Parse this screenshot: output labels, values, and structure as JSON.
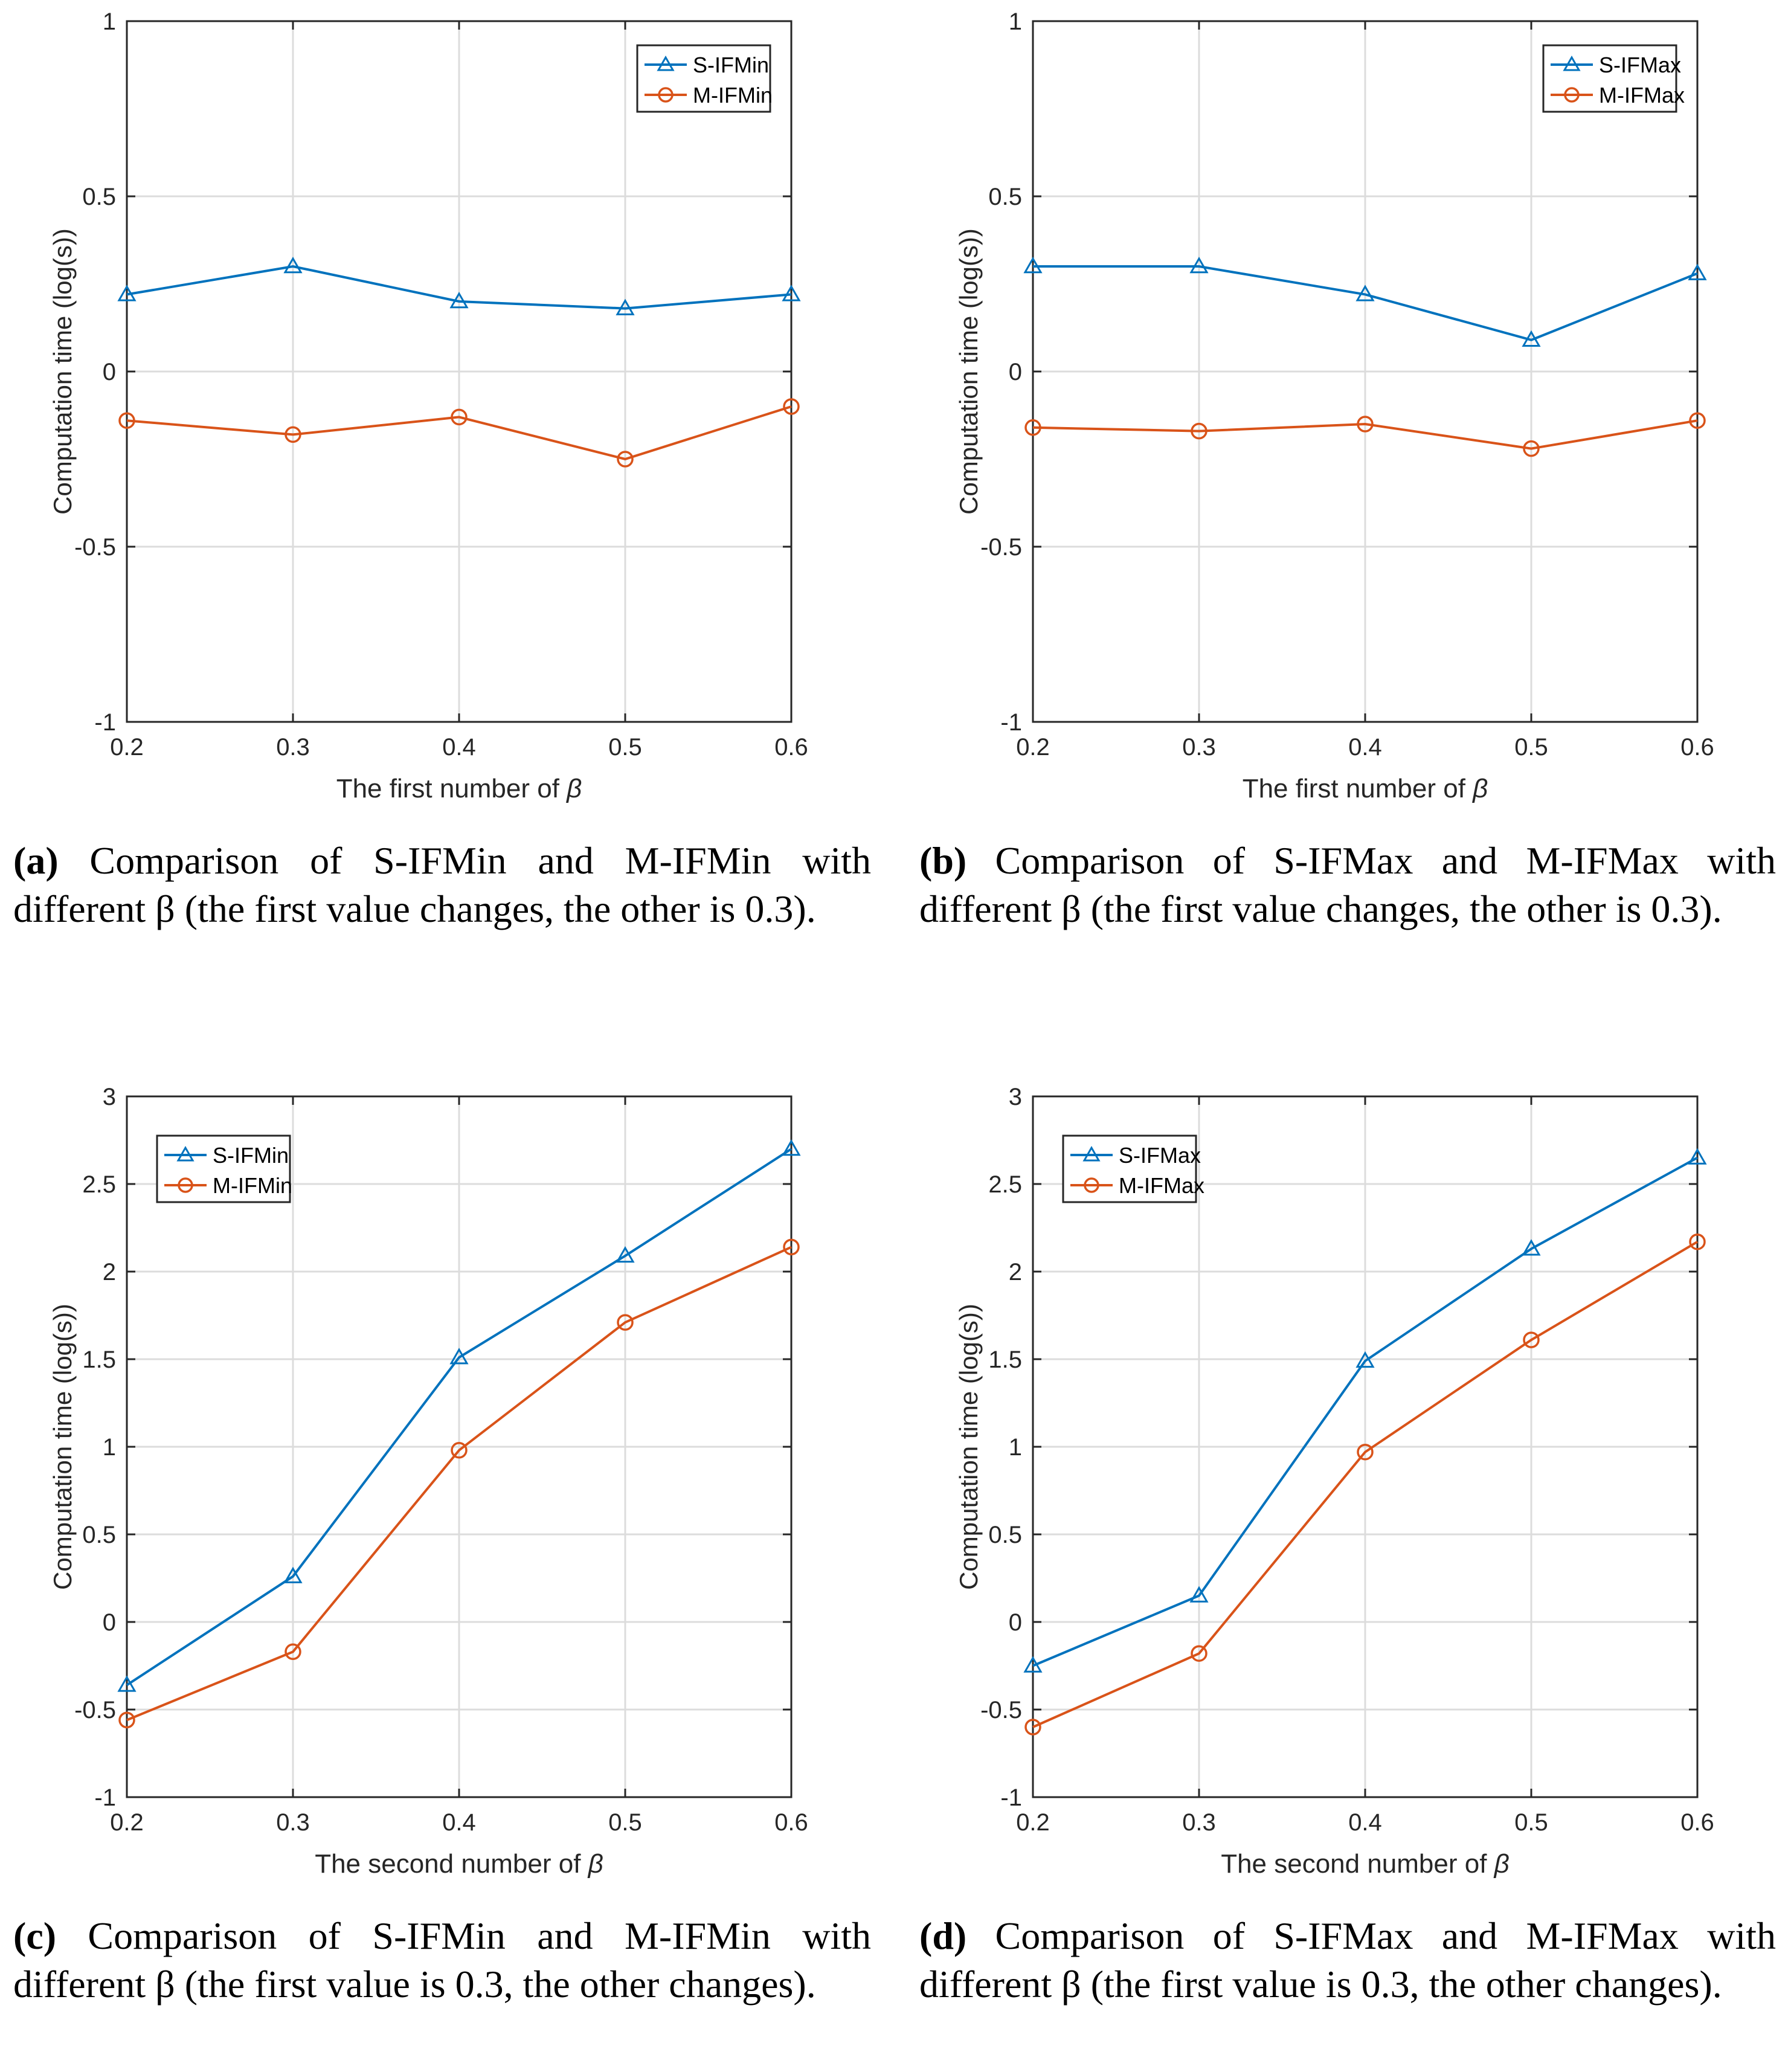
{
  "colors": {
    "series1": "#0072BD",
    "series2": "#D95319",
    "grid": "#dcdcdc",
    "axis": "#262626"
  },
  "chart_data": [
    {
      "id": "a",
      "type": "line",
      "x": [
        0.2,
        0.3,
        0.4,
        0.5,
        0.6
      ],
      "xticks": [
        "0.2",
        "0.3",
        "0.4",
        "0.5",
        "0.6"
      ],
      "yticks": [
        "1",
        "0.5",
        "0",
        "-0.5",
        "-1"
      ],
      "ytick_values": [
        1,
        0.5,
        0,
        -0.5,
        -1
      ],
      "xlim": [
        0.2,
        0.6
      ],
      "ylim": [
        -1,
        1
      ],
      "xlabel_prefix": "The first number of ",
      "xlabel_symbol": "β",
      "ylabel": "Computation time (log(s))",
      "grid": true,
      "legend_position": "top-right",
      "series": [
        {
          "name": "S-IFMin",
          "marker": "triangle",
          "values": [
            0.22,
            0.3,
            0.2,
            0.18,
            0.22
          ]
        },
        {
          "name": "M-IFMin",
          "marker": "circle",
          "values": [
            -0.14,
            -0.18,
            -0.13,
            -0.25,
            -0.1
          ]
        }
      ],
      "caption": {
        "label": "(a)",
        "text": " Comparison of S-IFMin and M-IFMin with different β (the first value changes, the other is 0.3)."
      }
    },
    {
      "id": "b",
      "type": "line",
      "x": [
        0.2,
        0.3,
        0.4,
        0.5,
        0.6
      ],
      "xticks": [
        "0.2",
        "0.3",
        "0.4",
        "0.5",
        "0.6"
      ],
      "yticks": [
        "1",
        "0.5",
        "0",
        "-0.5",
        "-1"
      ],
      "ytick_values": [
        1,
        0.5,
        0,
        -0.5,
        -1
      ],
      "xlim": [
        0.2,
        0.6
      ],
      "ylim": [
        -1,
        1
      ],
      "xlabel_prefix": "The first number of ",
      "xlabel_symbol": "β",
      "ylabel": "Computation time (log(s))",
      "grid": true,
      "legend_position": "top-right",
      "series": [
        {
          "name": "S-IFMax",
          "marker": "triangle",
          "values": [
            0.3,
            0.3,
            0.22,
            0.09,
            0.28
          ]
        },
        {
          "name": "M-IFMax",
          "marker": "circle",
          "values": [
            -0.16,
            -0.17,
            -0.15,
            -0.22,
            -0.14
          ]
        }
      ],
      "caption": {
        "label": "(b)",
        "text": " Comparison of S-IFMax and M-IFMax with different β (the first value changes, the other is 0.3)."
      }
    },
    {
      "id": "c",
      "type": "line",
      "x": [
        0.2,
        0.3,
        0.4,
        0.5,
        0.6
      ],
      "xticks": [
        "0.2",
        "0.3",
        "0.4",
        "0.5",
        "0.6"
      ],
      "yticks": [
        "3",
        "2.5",
        "2",
        "1.5",
        "1",
        "0.5",
        "0",
        "-0.5",
        "-1"
      ],
      "ytick_values": [
        3,
        2.5,
        2,
        1.5,
        1,
        0.5,
        0,
        -0.5,
        -1
      ],
      "xlim": [
        0.2,
        0.6
      ],
      "ylim": [
        -1,
        3
      ],
      "xlabel_prefix": "The second number of ",
      "xlabel_symbol": "β",
      "ylabel": "Computation time (log(s))",
      "grid": true,
      "legend_position": "top-left",
      "series": [
        {
          "name": "S-IFMin",
          "marker": "triangle",
          "values": [
            -0.36,
            0.26,
            1.51,
            2.09,
            2.7
          ]
        },
        {
          "name": "M-IFMin",
          "marker": "circle",
          "values": [
            -0.56,
            -0.17,
            0.98,
            1.71,
            2.14
          ]
        }
      ],
      "caption": {
        "label": "(c)",
        "text": " Comparison of S-IFMin and M-IFMin with different β (the first value is 0.3, the other changes)."
      }
    },
    {
      "id": "d",
      "type": "line",
      "x": [
        0.2,
        0.3,
        0.4,
        0.5,
        0.6
      ],
      "xticks": [
        "0.2",
        "0.3",
        "0.4",
        "0.5",
        "0.6"
      ],
      "yticks": [
        "3",
        "2.5",
        "2",
        "1.5",
        "1",
        "0.5",
        "0",
        "-0.5",
        "-1"
      ],
      "ytick_values": [
        3,
        2.5,
        2,
        1.5,
        1,
        0.5,
        0,
        -0.5,
        -1
      ],
      "xlim": [
        0.2,
        0.6
      ],
      "ylim": [
        -1,
        3
      ],
      "xlabel_prefix": "The second number of ",
      "xlabel_symbol": "β",
      "ylabel": "Computation time (log(s))",
      "grid": true,
      "legend_position": "top-left",
      "series": [
        {
          "name": "S-IFMax",
          "marker": "triangle",
          "values": [
            -0.25,
            0.15,
            1.49,
            2.13,
            2.65
          ]
        },
        {
          "name": "M-IFMax",
          "marker": "circle",
          "values": [
            -0.6,
            -0.18,
            0.97,
            1.61,
            2.17
          ]
        }
      ],
      "caption": {
        "label": "(d)",
        "text": " Comparison of S-IFMax and M-IFMax with different β (the first value is 0.3, the other changes)."
      }
    }
  ]
}
